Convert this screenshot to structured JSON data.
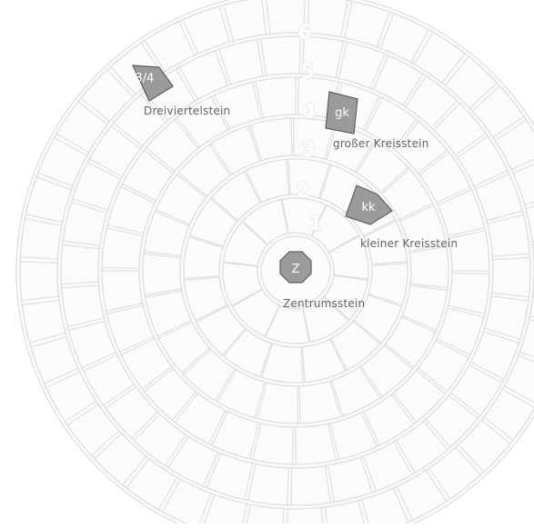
{
  "colors": {
    "grid_line": "#dedede",
    "grid_bg": "#fbfbfb",
    "stone_fill": "#9b9b9b",
    "stone_stroke": "#5f5f5f",
    "label_text": "#666666",
    "number_stroke": "#e6e6e6"
  },
  "ring_numbers": [
    "1",
    "2",
    "3",
    "4",
    "5",
    "6"
  ],
  "stones": [
    {
      "id": "zentrumsstein",
      "code": "Z",
      "label": "Zentrumsstein",
      "shape": "octagon"
    },
    {
      "id": "kleiner-kreisstein",
      "code": "kk",
      "label": "kleiner Kreisstein",
      "shape": "pentagon"
    },
    {
      "id": "grosser-kreisstein",
      "code": "gk",
      "label": "großer Kreisstein",
      "shape": "quad"
    },
    {
      "id": "dreiviertelstein",
      "code": "3/4",
      "label": "Dreiviertelstein",
      "shape": "quad"
    }
  ]
}
